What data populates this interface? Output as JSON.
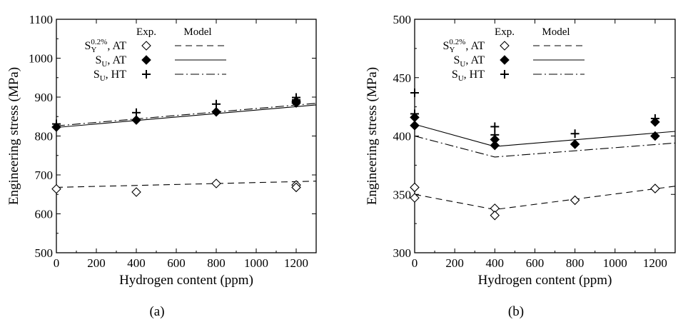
{
  "figure": {
    "captions": [
      "(a)",
      "(b)"
    ]
  },
  "legend": {
    "header_exp": "Exp.",
    "header_model": "Model",
    "entries": [
      {
        "main": "S",
        "sub": "Y",
        "sup": "0.2%",
        "suffix": ", AT",
        "marker": "open-diamond",
        "line": "dashed"
      },
      {
        "main": "S",
        "sub": "U",
        "sup": "",
        "suffix": ", AT",
        "marker": "filled-diamond",
        "line": "solid"
      },
      {
        "main": "S",
        "sub": "U",
        "sup": "",
        "suffix": ", HT",
        "marker": "plus",
        "line": "dashdot"
      }
    ]
  },
  "chart_data": [
    {
      "type": "scatter",
      "panel": "(a)",
      "xlabel": "Hydrogen content (ppm)",
      "ylabel": "Engineering stress (MPa)",
      "xlim": [
        0,
        1300
      ],
      "ylim": [
        500,
        1100
      ],
      "xticks": [
        0,
        200,
        400,
        600,
        800,
        1000,
        1200
      ],
      "yticks": [
        500,
        600,
        700,
        800,
        900,
        1000,
        1100
      ],
      "grid": false,
      "legend_position": "top-left",
      "series": [
        {
          "name": "SY0.2%, AT (Exp.)",
          "marker": "open-diamond",
          "points": [
            [
              0,
              664
            ],
            [
              400,
              656
            ],
            [
              800,
              678
            ],
            [
              1200,
              674
            ],
            [
              1200,
              668
            ]
          ]
        },
        {
          "name": "SU, AT (Exp.)",
          "marker": "filled-diamond",
          "points": [
            [
              0,
              823
            ],
            [
              400,
              841
            ],
            [
              800,
              862
            ],
            [
              1200,
              889
            ],
            [
              1200,
              885
            ]
          ]
        },
        {
          "name": "SU, HT (Exp.)",
          "marker": "plus",
          "points": [
            [
              0,
              831
            ],
            [
              400,
              860
            ],
            [
              800,
              882
            ],
            [
              1200,
              899
            ],
            [
              1200,
              893
            ]
          ]
        },
        {
          "name": "SY0.2%, AT (Model)",
          "line": "dashed",
          "points": [
            [
              0,
              668
            ],
            [
              1300,
              684
            ]
          ]
        },
        {
          "name": "SU, AT (Model)",
          "line": "solid",
          "points": [
            [
              0,
              822
            ],
            [
              1300,
              880
            ]
          ]
        },
        {
          "name": "SU, HT (Model)",
          "line": "dashdot",
          "points": [
            [
              0,
              826
            ],
            [
              1300,
              884
            ]
          ]
        }
      ]
    },
    {
      "type": "scatter",
      "panel": "(b)",
      "xlabel": "Hydrogen content (ppm)",
      "ylabel": "Engineering stress (MPa)",
      "xlim": [
        0,
        1300
      ],
      "ylim": [
        300,
        500
      ],
      "xticks": [
        0,
        200,
        400,
        600,
        800,
        1000,
        1200
      ],
      "yticks": [
        300,
        350,
        400,
        450,
        500
      ],
      "grid": false,
      "legend_position": "top-left",
      "series": [
        {
          "name": "SY0.2%, AT (Exp.)",
          "marker": "open-diamond",
          "points": [
            [
              0,
              356
            ],
            [
              0,
              347
            ],
            [
              400,
              338
            ],
            [
              400,
              332
            ],
            [
              800,
              345
            ],
            [
              1200,
              355
            ]
          ]
        },
        {
          "name": "SU, AT (Exp.)",
          "marker": "filled-diamond",
          "points": [
            [
              0,
              416
            ],
            [
              0,
              409
            ],
            [
              400,
              397
            ],
            [
              400,
              392
            ],
            [
              800,
              393
            ],
            [
              1200,
              412
            ],
            [
              1200,
              400
            ]
          ]
        },
        {
          "name": "SU, HT (Exp.)",
          "marker": "plus",
          "points": [
            [
              0,
              437
            ],
            [
              0,
              419
            ],
            [
              400,
              408
            ],
            [
              400,
              401
            ],
            [
              800,
              402
            ],
            [
              1200,
              415
            ]
          ]
        },
        {
          "name": "SY0.2%, AT (Model)",
          "line": "dashed",
          "points": [
            [
              0,
              350
            ],
            [
              400,
              337
            ],
            [
              1300,
              357
            ]
          ]
        },
        {
          "name": "SU, AT (Model)",
          "line": "solid",
          "points": [
            [
              0,
              410
            ],
            [
              400,
              391
            ],
            [
              1300,
              404
            ]
          ]
        },
        {
          "name": "SU, HT (Model)",
          "line": "dashdot",
          "points": [
            [
              0,
              400
            ],
            [
              400,
              382
            ],
            [
              1300,
              394
            ]
          ]
        }
      ]
    }
  ]
}
